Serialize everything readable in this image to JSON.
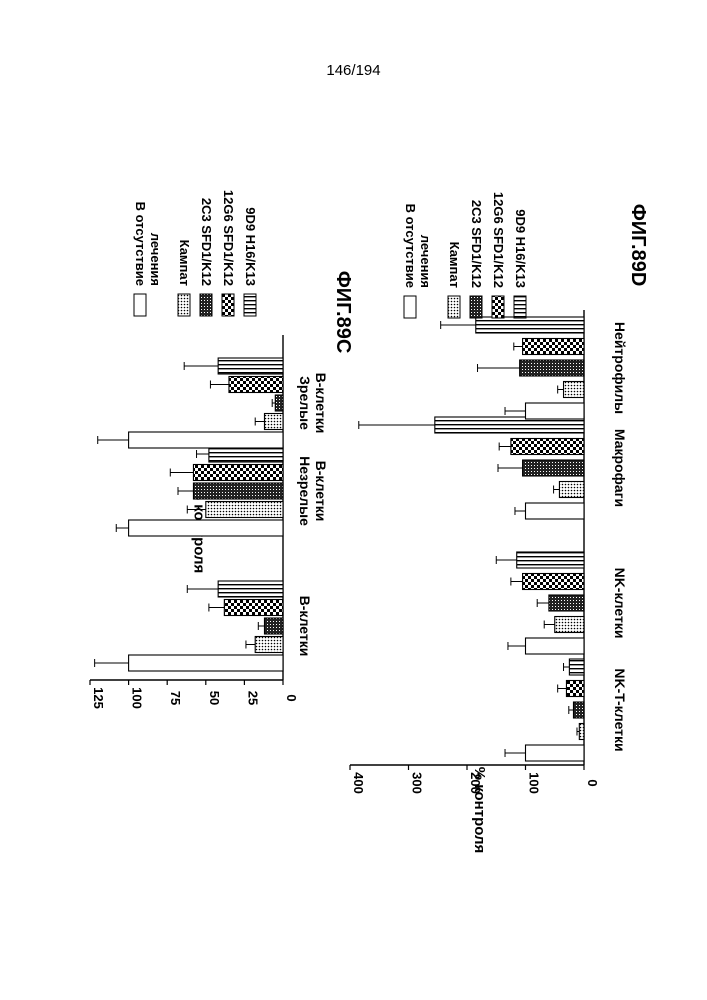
{
  "page_number": "146/194",
  "chart_data": [
    {
      "type": "bar",
      "figure_label": "ФИГ.89С",
      "ylabel": "% контроля",
      "ylim": [
        0,
        125
      ],
      "yticks": [
        0,
        25,
        50,
        75,
        100,
        125
      ],
      "categories": [
        {
          "lines": [
            "B-клетки"
          ]
        },
        {
          "lines": [
            "Незрелые",
            "B-клетки"
          ]
        },
        {
          "lines": [
            "Зрелые",
            "B-клетки"
          ]
        }
      ],
      "series": [
        {
          "name_lines": [
            "В отсутствие",
            "лечения"
          ],
          "pattern": "none",
          "values": [
            100,
            100,
            100
          ],
          "errors": [
            22,
            8,
            20
          ]
        },
        {
          "name_lines": [
            "Кампат"
          ],
          "pattern": "dots",
          "values": [
            18,
            50,
            12
          ],
          "errors": [
            6,
            12,
            6
          ]
        },
        {
          "name_lines": [
            "2C3 SFD1/K12"
          ],
          "pattern": "dense",
          "values": [
            12,
            58,
            5
          ],
          "errors": [
            4,
            10,
            2
          ]
        },
        {
          "name_lines": [
            "12G6 SFD1/K12"
          ],
          "pattern": "check",
          "values": [
            38,
            58,
            35
          ],
          "errors": [
            10,
            15,
            12
          ]
        },
        {
          "name_lines": [
            "9D9 H16/K13"
          ],
          "pattern": "stripes",
          "values": [
            42,
            48,
            42
          ],
          "errors": [
            20,
            8,
            22
          ]
        }
      ]
    },
    {
      "type": "bar",
      "figure_label": "ФИГ.89D",
      "ylabel": "% контроля",
      "ylim": [
        0,
        400
      ],
      "yticks": [
        0,
        100,
        200,
        300,
        400
      ],
      "categories": [
        {
          "lines": [
            "NK-T-клетки"
          ]
        },
        {
          "lines": [
            "NK-клетки"
          ]
        },
        {
          "lines": [
            "Макрофаги"
          ]
        },
        {
          "lines": [
            "Нейтрофилы"
          ]
        }
      ],
      "series": [
        {
          "name_lines": [
            "В отсутствие",
            "лечения"
          ],
          "pattern": "none",
          "values": [
            100,
            100,
            100,
            100
          ],
          "errors": [
            35,
            30,
            18,
            35
          ]
        },
        {
          "name_lines": [
            "Кампат"
          ],
          "pattern": "dots",
          "values": [
            8,
            50,
            42,
            35
          ],
          "errors": [
            4,
            18,
            10,
            10
          ]
        },
        {
          "name_lines": [
            "2C3 SFD1/K12"
          ],
          "pattern": "dense",
          "values": [
            18,
            60,
            105,
            110
          ],
          "errors": [
            8,
            20,
            42,
            72
          ]
        },
        {
          "name_lines": [
            "12G6 SFD1/K12"
          ],
          "pattern": "check",
          "values": [
            30,
            105,
            125,
            105
          ],
          "errors": [
            15,
            20,
            20,
            15
          ]
        },
        {
          "name_lines": [
            "9D9 H16/K13"
          ],
          "pattern": "stripes",
          "values": [
            25,
            115,
            255,
            185
          ],
          "errors": [
            10,
            35,
            130,
            60
          ]
        }
      ]
    }
  ]
}
